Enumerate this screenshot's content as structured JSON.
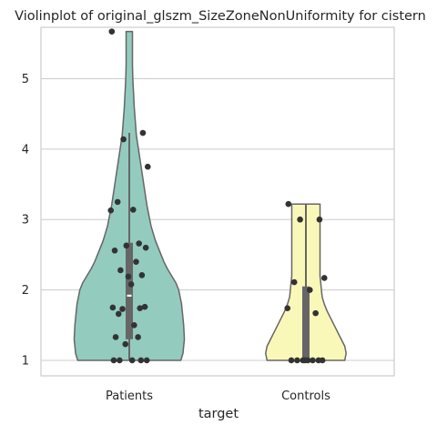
{
  "chart_data": {
    "type": "violin",
    "title": "Violinplot of original_glszm_SizeZoneNonUniformity for cistern",
    "xlabel": "target",
    "ylabel": "",
    "ylim": [
      0.78,
      5.73
    ],
    "y_ticks": [
      1,
      2,
      3,
      4,
      5
    ],
    "grid": "horizontal",
    "categories": [
      "Patients",
      "Controls"
    ],
    "colors": {
      "Patients": "#93cbbf",
      "Controls": "#f9f8b9",
      "edge": "#666666",
      "points": "#333333",
      "box": "#666666",
      "median": "#ffffff",
      "grid": "#cccccc",
      "frame": "#cccccc"
    },
    "series": [
      {
        "name": "Patients",
        "points": [
          5.67,
          4.23,
          4.14,
          3.75,
          3.25,
          3.14,
          3.13,
          2.66,
          2.63,
          2.6,
          2.56,
          2.4,
          2.28,
          2.21,
          2.19,
          2.08,
          1.75,
          1.74,
          1.73,
          1.76,
          1.66,
          1.5,
          1.33,
          1.33,
          1.23,
          1.0,
          1.0,
          1.0,
          1.0,
          1.0
        ],
        "box": {
          "whisker_low": 1.0,
          "q1": 1.3,
          "median": 1.92,
          "q3": 2.67,
          "whisker_high": 4.23
        },
        "violin": {
          "y": [
            1.0,
            1.1,
            1.2,
            1.3,
            1.4,
            1.5,
            1.6,
            1.7,
            1.8,
            1.9,
            2.0,
            2.1,
            2.2,
            2.3,
            2.4,
            2.5,
            2.6,
            2.7,
            2.8,
            2.9,
            3.0,
            3.2,
            3.4,
            3.6,
            3.8,
            4.0,
            4.2,
            4.4,
            4.6,
            4.8,
            5.0,
            5.2,
            5.4,
            5.5,
            5.6,
            5.67
          ],
          "width": [
            0.73,
            0.76,
            0.77,
            0.78,
            0.775,
            0.77,
            0.76,
            0.75,
            0.74,
            0.72,
            0.7,
            0.66,
            0.6,
            0.54,
            0.49,
            0.45,
            0.41,
            0.37,
            0.34,
            0.31,
            0.29,
            0.25,
            0.22,
            0.19,
            0.16,
            0.13,
            0.1,
            0.085,
            0.07,
            0.06,
            0.05,
            0.045,
            0.045,
            0.045,
            0.045,
            0.045
          ]
        }
      },
      {
        "name": "Controls",
        "points": [
          3.22,
          3.0,
          3.0,
          2.17,
          2.11,
          2.0,
          1.74,
          1.67,
          1.0,
          1.0,
          1.0,
          1.0,
          1.0,
          1.0,
          1.0,
          1.0
        ],
        "box": {
          "whisker_low": 1.0,
          "q1": 1.0,
          "median": 1.0,
          "q3": 2.05,
          "whisker_high": 3.22
        },
        "violin": {
          "y": [
            1.0,
            1.1,
            1.2,
            1.3,
            1.4,
            1.5,
            1.6,
            1.7,
            1.8,
            1.9,
            2.0,
            2.1,
            2.2,
            2.3,
            2.4,
            2.5,
            2.6,
            2.7,
            2.8,
            2.9,
            3.0,
            3.1,
            3.22
          ],
          "width": [
            0.55,
            0.57,
            0.55,
            0.5,
            0.45,
            0.4,
            0.35,
            0.3,
            0.26,
            0.23,
            0.22,
            0.21,
            0.2,
            0.2,
            0.2,
            0.2,
            0.2,
            0.2,
            0.2,
            0.2,
            0.2,
            0.2,
            0.2
          ]
        }
      }
    ]
  }
}
